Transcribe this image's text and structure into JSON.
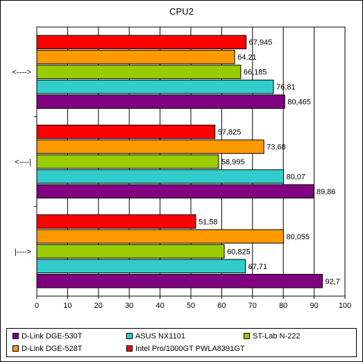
{
  "chart_data": {
    "type": "bar",
    "orientation": "horizontal",
    "title": "CPU2",
    "categories": [
      "<---->",
      "<----|",
      "|---->"
    ],
    "series": [
      {
        "name": "D-Link DGE-530T",
        "color": "#800080",
        "values": [
          80.465,
          89.86,
          92.7
        ],
        "labels": [
          "80,465",
          "89,86",
          "92,7"
        ]
      },
      {
        "name": "ASUS NX1101",
        "color": "#33cccc",
        "values": [
          76.81,
          80.07,
          67.71
        ],
        "labels": [
          "76,81",
          "80,07",
          "67,71"
        ]
      },
      {
        "name": "ST-Lab N-222",
        "color": "#99cc00",
        "values": [
          66.185,
          58.995,
          60.825
        ],
        "labels": [
          "66,185",
          "58,995",
          "60,825"
        ]
      },
      {
        "name": "D-Link DGE-528T",
        "color": "#ff9900",
        "values": [
          64.21,
          73.68,
          80.055
        ],
        "labels": [
          "64,21",
          "73,68",
          "80,055"
        ]
      },
      {
        "name": "Intel Pro/1000GT PWLA8391GT",
        "color": "#ff0000",
        "values": [
          67.945,
          57.825,
          51.58
        ],
        "labels": [
          "67,945",
          "57,825",
          "51,58"
        ]
      }
    ],
    "xlim": [
      0,
      100
    ],
    "xticks": [
      "0",
      "10",
      "20",
      "30",
      "40",
      "50",
      "60",
      "70",
      "80",
      "90",
      "100"
    ],
    "grid": true,
    "legend_position": "bottom"
  }
}
